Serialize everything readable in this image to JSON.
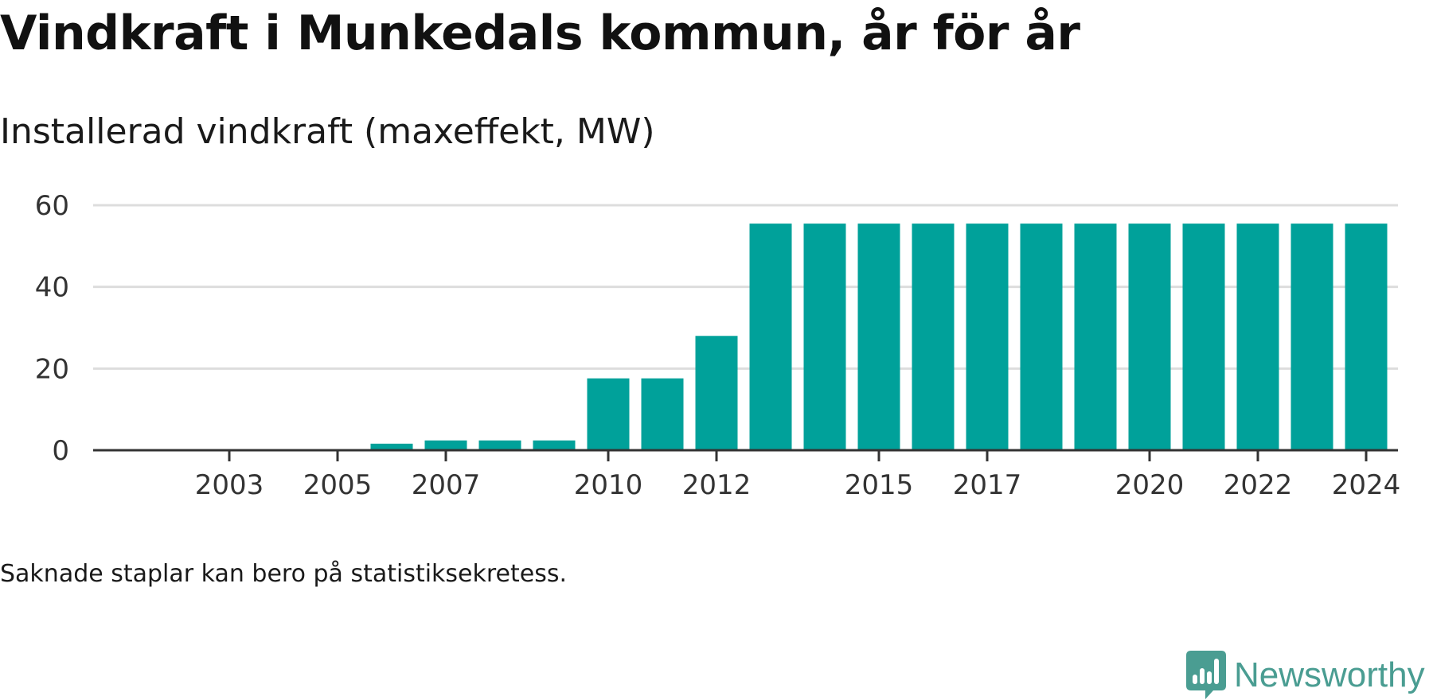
{
  "title": "Vindkraft i Munkedals kommun, år för år",
  "subtitle": "Installerad vindkraft (maxeffekt, MW)",
  "note": "Saknade staplar kan bero på statistiksekretess.",
  "brand": {
    "name": "Newsworthy",
    "icon": "newsworthy-logo-icon",
    "color": "#4a9d92"
  },
  "colors": {
    "bar": "#00a19a",
    "grid": "#dddddd",
    "axis": "#333333",
    "text": "#333333"
  },
  "chart_data": {
    "type": "bar",
    "title": "Installerad vindkraft (maxeffekt, MW)",
    "xlabel": "",
    "ylabel": "",
    "categories": [
      "2002",
      "2003",
      "2004",
      "2005",
      "2006",
      "2007",
      "2008",
      "2009",
      "2010",
      "2011",
      "2012",
      "2013",
      "2014",
      "2015",
      "2016",
      "2017",
      "2018",
      "2019",
      "2020",
      "2021",
      "2022",
      "2023",
      "2024"
    ],
    "values": [
      null,
      null,
      null,
      null,
      1.6,
      2.4,
      2.4,
      2.4,
      17.6,
      17.6,
      28,
      55.5,
      55.5,
      55.5,
      55.5,
      55.5,
      55.5,
      55.5,
      55.5,
      55.5,
      55.5,
      55.5,
      55.5
    ],
    "x_tick_labels": [
      "2003",
      "2005",
      "2007",
      "2010",
      "2012",
      "2015",
      "2017",
      "2020",
      "2022",
      "2024"
    ],
    "y_ticks": [
      0,
      20,
      40,
      60
    ],
    "ylim": [
      0,
      60
    ],
    "grid": true,
    "legend": "none"
  }
}
